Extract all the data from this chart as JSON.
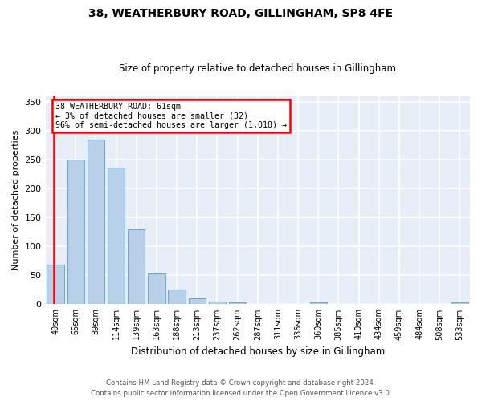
{
  "title": "38, WEATHERBURY ROAD, GILLINGHAM, SP8 4FE",
  "subtitle": "Size of property relative to detached houses in Gillingham",
  "xlabel": "Distribution of detached houses by size in Gillingham",
  "ylabel": "Number of detached properties",
  "bar_color": "#b8d0e8",
  "bar_edge_color": "#6aaad4",
  "background_color": "#e8eef8",
  "grid_color": "#ffffff",
  "categories": [
    "40sqm",
    "65sqm",
    "89sqm",
    "114sqm",
    "139sqm",
    "163sqm",
    "188sqm",
    "213sqm",
    "237sqm",
    "262sqm",
    "287sqm",
    "311sqm",
    "336sqm",
    "360sqm",
    "385sqm",
    "410sqm",
    "434sqm",
    "459sqm",
    "484sqm",
    "508sqm",
    "533sqm"
  ],
  "values": [
    68,
    250,
    285,
    236,
    129,
    53,
    25,
    10,
    5,
    4,
    0,
    0,
    0,
    4,
    0,
    0,
    0,
    0,
    0,
    0,
    3
  ],
  "ylim": [
    0,
    360
  ],
  "yticks": [
    0,
    50,
    100,
    150,
    200,
    250,
    300,
    350
  ],
  "red_line_x": -0.07,
  "annotation_title": "38 WEATHERBURY ROAD: 61sqm",
  "annotation_line1": "← 3% of detached houses are smaller (32)",
  "annotation_line2": "96% of semi-detached houses are larger (1,018) →",
  "footnote1": "Contains HM Land Registry data © Crown copyright and database right 2024.",
  "footnote2": "Contains public sector information licensed under the Open Government Licence v3.0."
}
